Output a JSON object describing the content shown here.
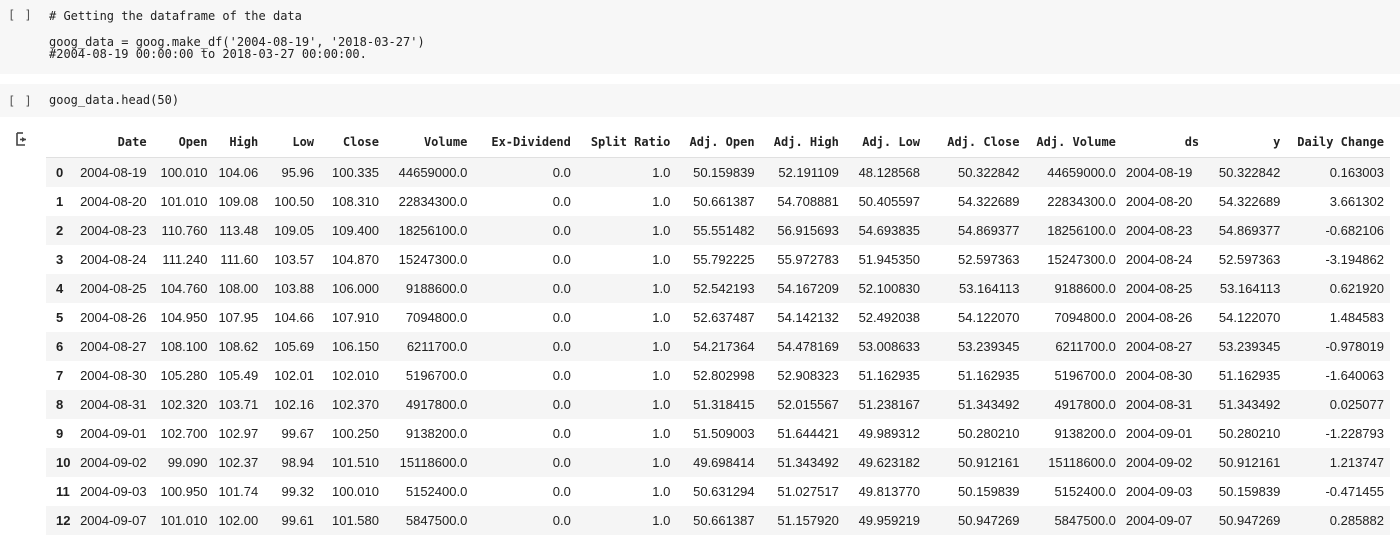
{
  "cells": [
    {
      "run_label": "[ ]",
      "code_lines": [
        "# Getting the dataframe of the data",
        "goog_data = goog.make_df('2004-08-19', '2018-03-27')",
        "#2004-08-19 00:00:00 to 2018-03-27 00:00:00."
      ]
    },
    {
      "run_label": "[ ]",
      "code_lines": [
        "goog_data.head(50)"
      ]
    }
  ],
  "output": {
    "icon": "output-arrow-icon",
    "columns": [
      "",
      "Date",
      "Open",
      "High",
      "Low",
      "Close",
      "Volume",
      "Ex-Dividend",
      "Split Ratio",
      "Adj. Open",
      "Adj. High",
      "Adj. Low",
      "Adj. Close",
      "Adj. Volume",
      "ds",
      "y",
      "Daily Change"
    ],
    "rows": [
      [
        "0",
        "2004-08-19",
        "100.010",
        "104.06",
        "95.96",
        "100.335",
        "44659000.0",
        "0.0",
        "1.0",
        "50.159839",
        "52.191109",
        "48.128568",
        "50.322842",
        "44659000.0",
        "2004-08-19",
        "50.322842",
        "0.163003"
      ],
      [
        "1",
        "2004-08-20",
        "101.010",
        "109.08",
        "100.50",
        "108.310",
        "22834300.0",
        "0.0",
        "1.0",
        "50.661387",
        "54.708881",
        "50.405597",
        "54.322689",
        "22834300.0",
        "2004-08-20",
        "54.322689",
        "3.661302"
      ],
      [
        "2",
        "2004-08-23",
        "110.760",
        "113.48",
        "109.05",
        "109.400",
        "18256100.0",
        "0.0",
        "1.0",
        "55.551482",
        "56.915693",
        "54.693835",
        "54.869377",
        "18256100.0",
        "2004-08-23",
        "54.869377",
        "-0.682106"
      ],
      [
        "3",
        "2004-08-24",
        "111.240",
        "111.60",
        "103.57",
        "104.870",
        "15247300.0",
        "0.0",
        "1.0",
        "55.792225",
        "55.972783",
        "51.945350",
        "52.597363",
        "15247300.0",
        "2004-08-24",
        "52.597363",
        "-3.194862"
      ],
      [
        "4",
        "2004-08-25",
        "104.760",
        "108.00",
        "103.88",
        "106.000",
        "9188600.0",
        "0.0",
        "1.0",
        "52.542193",
        "54.167209",
        "52.100830",
        "53.164113",
        "9188600.0",
        "2004-08-25",
        "53.164113",
        "0.621920"
      ],
      [
        "5",
        "2004-08-26",
        "104.950",
        "107.95",
        "104.66",
        "107.910",
        "7094800.0",
        "0.0",
        "1.0",
        "52.637487",
        "54.142132",
        "52.492038",
        "54.122070",
        "7094800.0",
        "2004-08-26",
        "54.122070",
        "1.484583"
      ],
      [
        "6",
        "2004-08-27",
        "108.100",
        "108.62",
        "105.69",
        "106.150",
        "6211700.0",
        "0.0",
        "1.0",
        "54.217364",
        "54.478169",
        "53.008633",
        "53.239345",
        "6211700.0",
        "2004-08-27",
        "53.239345",
        "-0.978019"
      ],
      [
        "7",
        "2004-08-30",
        "105.280",
        "105.49",
        "102.01",
        "102.010",
        "5196700.0",
        "0.0",
        "1.0",
        "52.802998",
        "52.908323",
        "51.162935",
        "51.162935",
        "5196700.0",
        "2004-08-30",
        "51.162935",
        "-1.640063"
      ],
      [
        "8",
        "2004-08-31",
        "102.320",
        "103.71",
        "102.16",
        "102.370",
        "4917800.0",
        "0.0",
        "1.0",
        "51.318415",
        "52.015567",
        "51.238167",
        "51.343492",
        "4917800.0",
        "2004-08-31",
        "51.343492",
        "0.025077"
      ],
      [
        "9",
        "2004-09-01",
        "102.700",
        "102.97",
        "99.67",
        "100.250",
        "9138200.0",
        "0.0",
        "1.0",
        "51.509003",
        "51.644421",
        "49.989312",
        "50.280210",
        "9138200.0",
        "2004-09-01",
        "50.280210",
        "-1.228793"
      ],
      [
        "10",
        "2004-09-02",
        "99.090",
        "102.37",
        "98.94",
        "101.510",
        "15118600.0",
        "0.0",
        "1.0",
        "49.698414",
        "51.343492",
        "49.623182",
        "50.912161",
        "15118600.0",
        "2004-09-02",
        "50.912161",
        "1.213747"
      ],
      [
        "11",
        "2004-09-03",
        "100.950",
        "101.74",
        "99.32",
        "100.010",
        "5152400.0",
        "0.0",
        "1.0",
        "50.631294",
        "51.027517",
        "49.813770",
        "50.159839",
        "5152400.0",
        "2004-09-03",
        "50.159839",
        "-0.471455"
      ],
      [
        "12",
        "2004-09-07",
        "101.010",
        "102.00",
        "99.61",
        "101.580",
        "5847500.0",
        "0.0",
        "1.0",
        "50.661387",
        "51.157920",
        "49.959219",
        "50.947269",
        "5847500.0",
        "2004-09-07",
        "50.947269",
        "0.285882"
      ]
    ]
  }
}
